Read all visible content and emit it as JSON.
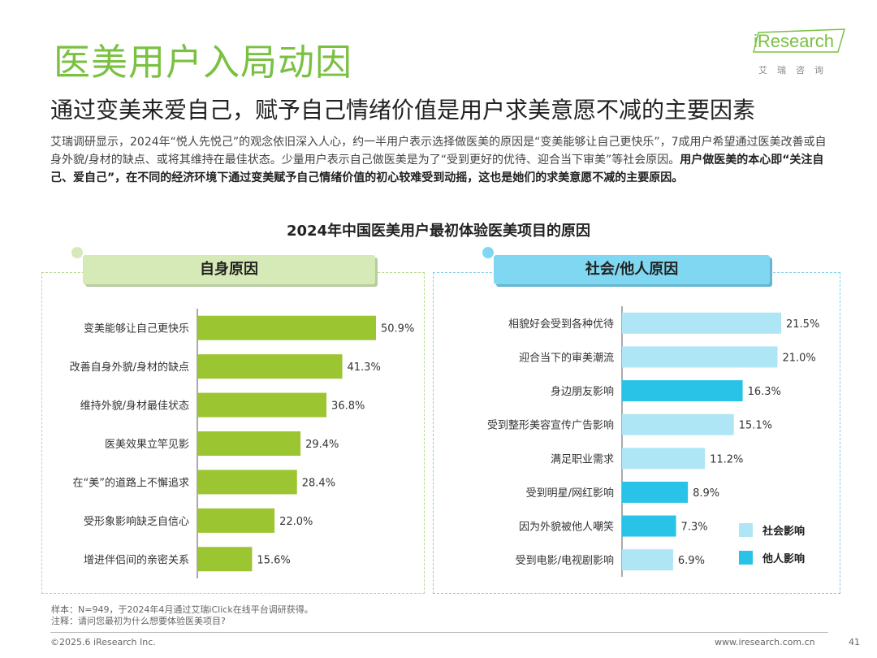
{
  "header": {
    "title": "医美用户入局动因",
    "subtitle": "通过变美来爱自己，赋予自己情绪价值是用户求美意愿不减的主要因素"
  },
  "logo": {
    "main": "iResearch",
    "sub": "艾瑞咨询"
  },
  "intro": {
    "plain": "艾瑞调研显示，2024年“悦人先悦己”的观念依旧深入人心，约一半用户表示选择做医美的原因是“变美能够让自己更快乐”，7成用户希望通过医美改善或自身外貌/身材的缺点、或将其维持在最佳状态。少量用户表示自己做医美是为了“受到更好的优待、迎合当下审美”等社会原因。",
    "bold": "用户做医美的本心即“关注自己、爱自己”，在不同的经济环境下通过变美赋予自己情绪价值的初心较难受到动摇，这也是她们的求美意愿不减的主要原因。"
  },
  "chart_data": [
    {
      "type": "bar",
      "orientation": "horizontal",
      "title": "2024年中国医美用户最初体验医美项目的原因",
      "panel_title": "自身原因",
      "categories": [
        "变美能够让自己更快乐",
        "改善自身外貌/身材的缺点",
        "维持外貌/身材最佳状态",
        "医美效果立竿见影",
        "在“美”的道路上不懈追求",
        "受形象影响缺乏自信心",
        "增进伴侣间的亲密关系"
      ],
      "values": [
        50.9,
        41.3,
        36.8,
        29.4,
        28.4,
        22.0,
        15.6
      ],
      "labels": [
        "50.9%",
        "41.3%",
        "36.8%",
        "29.4%",
        "28.4%",
        "22.0%",
        "15.6%"
      ],
      "unit": "%",
      "color": "#9bc531"
    },
    {
      "type": "bar",
      "orientation": "horizontal",
      "title": "2024年中国医美用户最初体验医美项目的原因",
      "panel_title": "社会/他人原因",
      "categories": [
        "相貌好会受到各种优待",
        "迎合当下的审美潮流",
        "身边朋友影响",
        "受到整形美容宣传广告影响",
        "满足职业需求",
        "受到明星/网红影响",
        "因为外貌被他人嘲笑",
        "受到电影/电视剧影响"
      ],
      "values": [
        21.5,
        21.0,
        16.3,
        15.1,
        11.2,
        8.9,
        7.3,
        6.9
      ],
      "labels": [
        "21.5%",
        "21.0%",
        "16.3%",
        "15.1%",
        "11.2%",
        "8.9%",
        "7.3%",
        "6.9%"
      ],
      "groups": [
        "社会影响",
        "社会影响",
        "他人影响",
        "社会影响",
        "社会影响",
        "他人影响",
        "他人影响",
        "社会影响"
      ],
      "unit": "%",
      "legend": [
        {
          "name": "社会影响",
          "color": "#aee6f6"
        },
        {
          "name": "他人影响",
          "color": "#29c3e8"
        }
      ]
    }
  ],
  "notes": {
    "sample": "样本：N=949，于2024年4月通过艾瑞iClick在线平台调研获得。",
    "question": "注释：请问您最初为什么想要体验医美项目?"
  },
  "footer": {
    "copyright": "©2025.6 iResearch Inc.",
    "website": "www.iresearch.com.cn",
    "page": "41"
  }
}
